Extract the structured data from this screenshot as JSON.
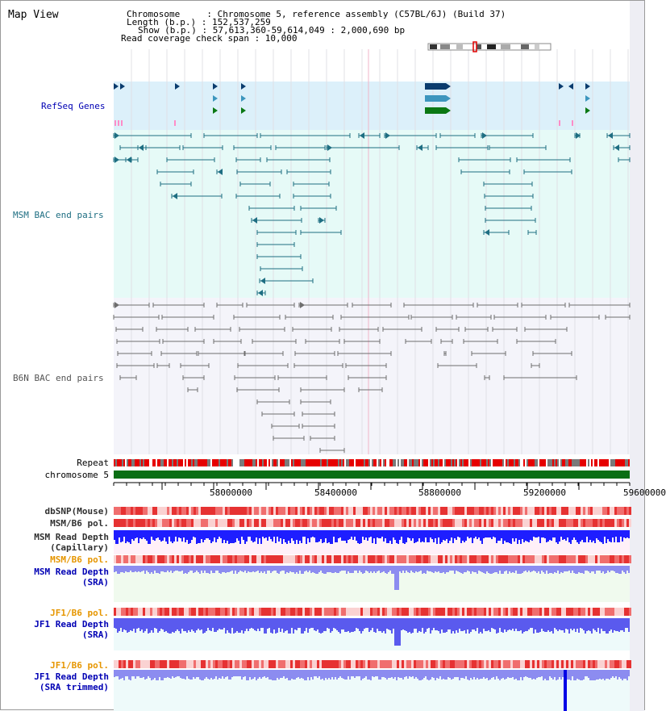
{
  "title": "Map View",
  "info": {
    "chromosome_line": "Chromosome     : Chromosome 5, reference assembly (C57BL/6J) (Build 37)",
    "length_line": "Length (b.p.) : 152,537,259",
    "show_line": "Show (b.p.) : 57,613,360-59,614,049 : 2,000,690 bp",
    "coverage_line": "Read coverage check span : 10,000"
  },
  "tracks": {
    "refseq": "RefSeq Genes",
    "msm_bac": "MSM BAC end pairs",
    "b6n_bac": "B6N BAC end pairs",
    "repeat": "Repeat",
    "chromosome": "chromosome 5",
    "dbsnp": "dbSNP(Mouse)",
    "msm_b6_pol_1": "MSM/B6 pol.",
    "msm_depth_cap_1": "MSM Read Depth",
    "msm_depth_cap_2": "(Capillary)",
    "msm_b6_pol_2": "MSM/B6 pol.",
    "msm_depth_sra_1": "MSM Read Depth",
    "msm_depth_sra_2": "(SRA)",
    "jf1_b6_pol_1": "JF1/B6 pol.",
    "jf1_depth_sra_1": "JF1 Read Depth",
    "jf1_depth_sra_2": "(SRA)",
    "jf1_b6_pol_2": "JF1/B6 pol.",
    "jf1_depth_trim_1": "JF1 Read Depth",
    "jf1_depth_trim_2": "(SRA trimmed)"
  },
  "ruler": {
    "ticks": [
      "58000000",
      "58400000",
      "58800000",
      "59200000",
      "59600000"
    ]
  },
  "colors": {
    "refseq_bg": "#dcf0fa",
    "msm_bg": "#e6faf7",
    "b6n_bg": "#f4f4fa",
    "chrom_bar": "#0a6e14",
    "depth_blue": "#2828e6",
    "label_blue": "#0000b4",
    "label_orange": "#e69600",
    "msm_feature": "#1e6e82"
  }
}
